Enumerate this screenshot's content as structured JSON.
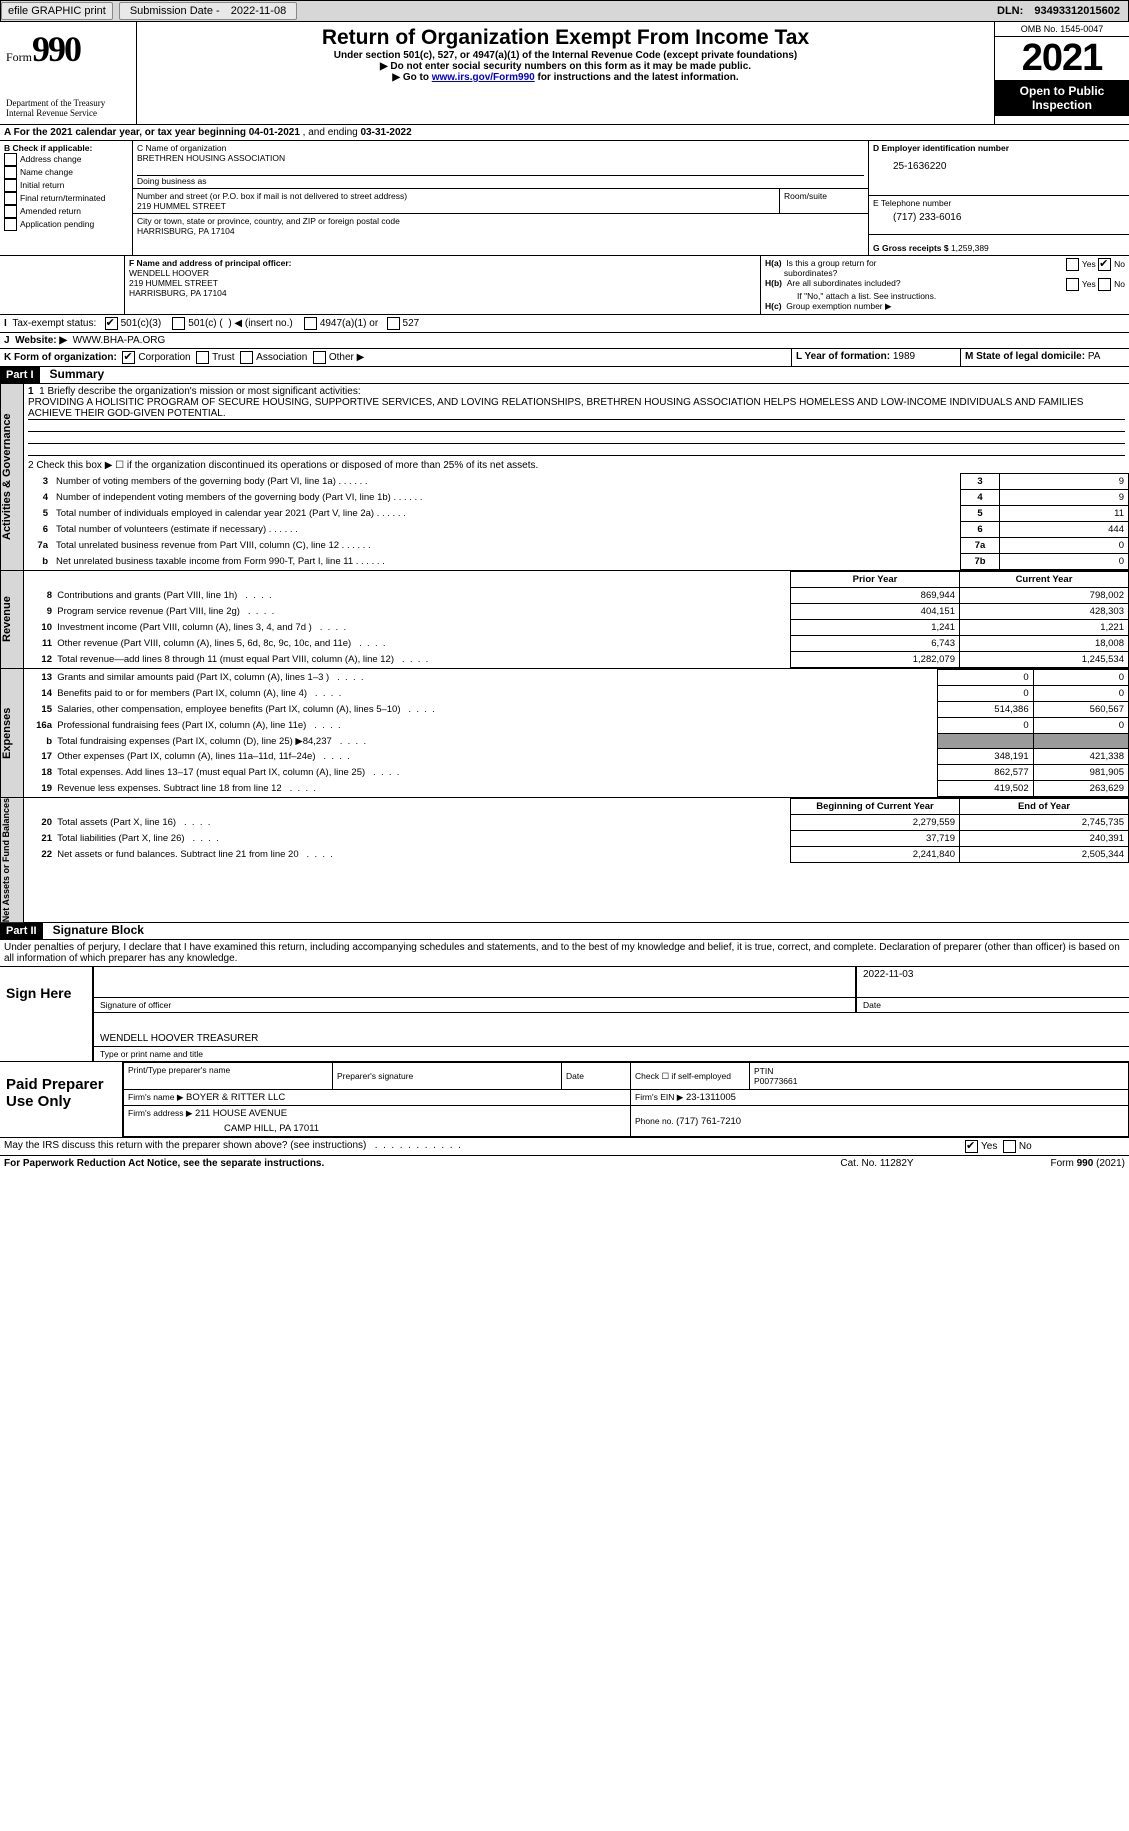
{
  "topbar": {
    "efile": "efile GRAPHIC print",
    "subdate_label": "Submission Date - ",
    "subdate": "2022-11-08",
    "dln_label": "DLN: ",
    "dln": "93493312015602"
  },
  "header": {
    "form_prefix": "Form",
    "form_num": "990",
    "dept": "Department of the Treasury",
    "irs": "Internal Revenue Service",
    "title": "Return of Organization Exempt From Income Tax",
    "sub1": "Under section 501(c), 527, or 4947(a)(1) of the Internal Revenue Code (except private foundations)",
    "sub2": "▶ Do not enter social security numbers on this form as it may be made public.",
    "sub3": "▶ Go to ",
    "sub3_link": "www.irs.gov/Form990",
    "sub3_tail": " for instructions and the latest information.",
    "omb": "OMB No. 1545-0047",
    "year": "2021",
    "open": "Open to Public Inspection"
  },
  "periodA": {
    "label": "A For the 2021 calendar year, or tax year beginning ",
    "begin": "04-01-2021",
    "mid": " , and ending ",
    "end": "03-31-2022"
  },
  "B": {
    "label": "B Check if applicable:",
    "items": [
      "Address change",
      "Name change",
      "Initial return",
      "Final return/terminated",
      "Amended return",
      "Application pending"
    ]
  },
  "C": {
    "name_label": "C Name of organization",
    "name": "BRETHREN HOUSING ASSOCIATION",
    "dba_label": "Doing business as",
    "dba": "",
    "street_label": "Number and street (or P.O. box if mail is not delivered to street address)",
    "room_label": "Room/suite",
    "street": "219 HUMMEL STREET",
    "city_label": "City or town, state or province, country, and ZIP or foreign postal code",
    "city": "HARRISBURG, PA  17104"
  },
  "D": {
    "label": "D Employer identification number",
    "val": "25-1636220"
  },
  "E": {
    "label": "E Telephone number",
    "val": "(717) 233-6016"
  },
  "G": {
    "label": "G Gross receipts $ ",
    "val": "1,259,389"
  },
  "F": {
    "label": "F  Name and address of principal officer:",
    "name": "WENDELL HOOVER",
    "street": "219 HUMMEL STREET",
    "city": "HARRISBURG, PA  17104"
  },
  "H": {
    "a_label": "H(a)  Is this a group return for",
    "a_label2": "subordinates?",
    "b_label": "H(b)  Are all subordinates included?",
    "b_note": "If \"No,\" attach a list. See instructions.",
    "c_label": "H(c)  Group exemption number ▶",
    "yes": "Yes",
    "no": "No"
  },
  "I": {
    "label": "I  Tax-exempt status:",
    "i1": "501(c)(3)",
    "i2_a": "501(c) (",
    "i2_b": ") ◀ (insert no.)",
    "i3": "4947(a)(1) or",
    "i4": "527"
  },
  "J": {
    "label": "J  Website: ▶",
    "val": "WWW.BHA-PA.ORG"
  },
  "K": {
    "label": "K Form of organization:",
    "k1": "Corporation",
    "k2": "Trust",
    "k3": "Association",
    "k4": "Other ▶"
  },
  "L": {
    "label": "L Year of formation: ",
    "val": "1989"
  },
  "M": {
    "label": "M State of legal domicile: ",
    "val": "PA"
  },
  "part1": {
    "bar": "Part I",
    "title": "Summary"
  },
  "summary": {
    "q1_label": "1  Briefly describe the organization's mission or most significant activities:",
    "q1_val": "PROVIDING A HOLISITIC PROGRAM OF SECURE HOUSING, SUPPORTIVE SERVICES, AND LOVING RELATIONSHIPS, BRETHREN HOUSING ASSOCIATION HELPS HOMELESS AND LOW-INCOME INDIVIDUALS AND FAMILIES ACHIEVE THEIR GOD-GIVEN POTENTIAL.",
    "q2": "2  Check this box ▶ ☐  if the organization discontinued its operations or disposed of more than 25% of its net assets.",
    "lines": [
      {
        "n": "3",
        "t": "Number of voting members of the governing body (Part VI, line 1a)",
        "box": "3",
        "v": "9"
      },
      {
        "n": "4",
        "t": "Number of independent voting members of the governing body (Part VI, line 1b)",
        "box": "4",
        "v": "9"
      },
      {
        "n": "5",
        "t": "Total number of individuals employed in calendar year 2021 (Part V, line 2a)",
        "box": "5",
        "v": "11"
      },
      {
        "n": "6",
        "t": "Total number of volunteers (estimate if necessary)",
        "box": "6",
        "v": "444"
      },
      {
        "n": "7a",
        "t": "Total unrelated business revenue from Part VIII, column (C), line 12",
        "box": "7a",
        "v": "0"
      },
      {
        "n": "b",
        "t": "Net unrelated business taxable income from Form 990-T, Part I, line 11",
        "box": "7b",
        "v": "0"
      }
    ],
    "twoColHdr": {
      "prior": "Prior Year",
      "curr": "Current Year"
    },
    "revenue": [
      {
        "n": "8",
        "t": "Contributions and grants (Part VIII, line 1h)",
        "p": "869,944",
        "c": "798,002"
      },
      {
        "n": "9",
        "t": "Program service revenue (Part VIII, line 2g)",
        "p": "404,151",
        "c": "428,303"
      },
      {
        "n": "10",
        "t": "Investment income (Part VIII, column (A), lines 3, 4, and 7d )",
        "p": "1,241",
        "c": "1,221"
      },
      {
        "n": "11",
        "t": "Other revenue (Part VIII, column (A), lines 5, 6d, 8c, 9c, 10c, and 11e)",
        "p": "6,743",
        "c": "18,008"
      },
      {
        "n": "12",
        "t": "Total revenue—add lines 8 through 11 (must equal Part VIII, column (A), line 12)",
        "p": "1,282,079",
        "c": "1,245,534"
      }
    ],
    "expenses": [
      {
        "n": "13",
        "t": "Grants and similar amounts paid (Part IX, column (A), lines 1–3 )",
        "p": "0",
        "c": "0"
      },
      {
        "n": "14",
        "t": "Benefits paid to or for members (Part IX, column (A), line 4)",
        "p": "0",
        "c": "0"
      },
      {
        "n": "15",
        "t": "Salaries, other compensation, employee benefits (Part IX, column (A), lines 5–10)",
        "p": "514,386",
        "c": "560,567"
      },
      {
        "n": "16a",
        "t": "Professional fundraising fees (Part IX, column (A), line 11e)",
        "p": "0",
        "c": "0"
      },
      {
        "n": "b",
        "t": "Total fundraising expenses (Part IX, column (D), line 25) ▶84,237",
        "p": "",
        "c": ""
      },
      {
        "n": "17",
        "t": "Other expenses (Part IX, column (A), lines 11a–11d, 11f–24e)",
        "p": "348,191",
        "c": "421,338"
      },
      {
        "n": "18",
        "t": "Total expenses. Add lines 13–17 (must equal Part IX, column (A), line 25)",
        "p": "862,577",
        "c": "981,905"
      },
      {
        "n": "19",
        "t": "Revenue less expenses. Subtract line 18 from line 12",
        "p": "419,502",
        "c": "263,629"
      }
    ],
    "naHdr": {
      "begin": "Beginning of Current Year",
      "end": "End of Year"
    },
    "netassets": [
      {
        "n": "20",
        "t": "Total assets (Part X, line 16)",
        "p": "2,279,559",
        "c": "2,745,735"
      },
      {
        "n": "21",
        "t": "Total liabilities (Part X, line 26)",
        "p": "37,719",
        "c": "240,391"
      },
      {
        "n": "22",
        "t": "Net assets or fund balances. Subtract line 21 from line 20",
        "p": "2,241,840",
        "c": "2,505,344"
      }
    ],
    "sections": {
      "ag": "Activities & Governance",
      "rev": "Revenue",
      "exp": "Expenses",
      "na": "Net Assets or Fund Balances"
    }
  },
  "part2": {
    "bar": "Part II",
    "title": "Signature Block"
  },
  "sig": {
    "penalty": "Under penalties of perjury, I declare that I have examined this return, including accompanying schedules and statements, and to the best of my knowledge and belief, it is true, correct, and complete. Declaration of preparer (other than officer) is based on all information of which preparer has any knowledge.",
    "signhere": "Sign Here",
    "sig_ofc_label": "Signature of officer",
    "sig_date": "2022-11-03",
    "date_label": "Date",
    "officer_name": "WENDELL HOOVER  TREASURER",
    "officer_name_label": "Type or print name and title"
  },
  "paid": {
    "label": "Paid Preparer Use Only",
    "h": {
      "name": "Print/Type preparer's name",
      "sig": "Preparer's signature",
      "date": "Date",
      "self": "Check ☐ if self-employed",
      "ptin_label": "PTIN",
      "ptin": "P00773661"
    },
    "firm_label": "Firm's name   ▶",
    "firm": "BOYER & RITTER LLC",
    "ein_label": "Firm's EIN ▶",
    "ein": "23-1311005",
    "addr_label": "Firm's address ▶",
    "addr1": "211 HOUSE AVENUE",
    "addr2": "CAMP HILL, PA  17011",
    "phone_label": "Phone no. ",
    "phone": "(717) 761-7210"
  },
  "footer": {
    "discuss": "May the IRS discuss this return with the preparer shown above? (see instructions)",
    "yes": "Yes",
    "no": "No",
    "pra": "For Paperwork Reduction Act Notice, see the separate instructions.",
    "cat": "Cat. No. 11282Y",
    "form": "Form 990 (2021)"
  },
  "colors": {
    "link": "#0000cc",
    "black": "#000",
    "headergrey": "#d7d7d7",
    "cellgrey": "#9a9a9a"
  }
}
